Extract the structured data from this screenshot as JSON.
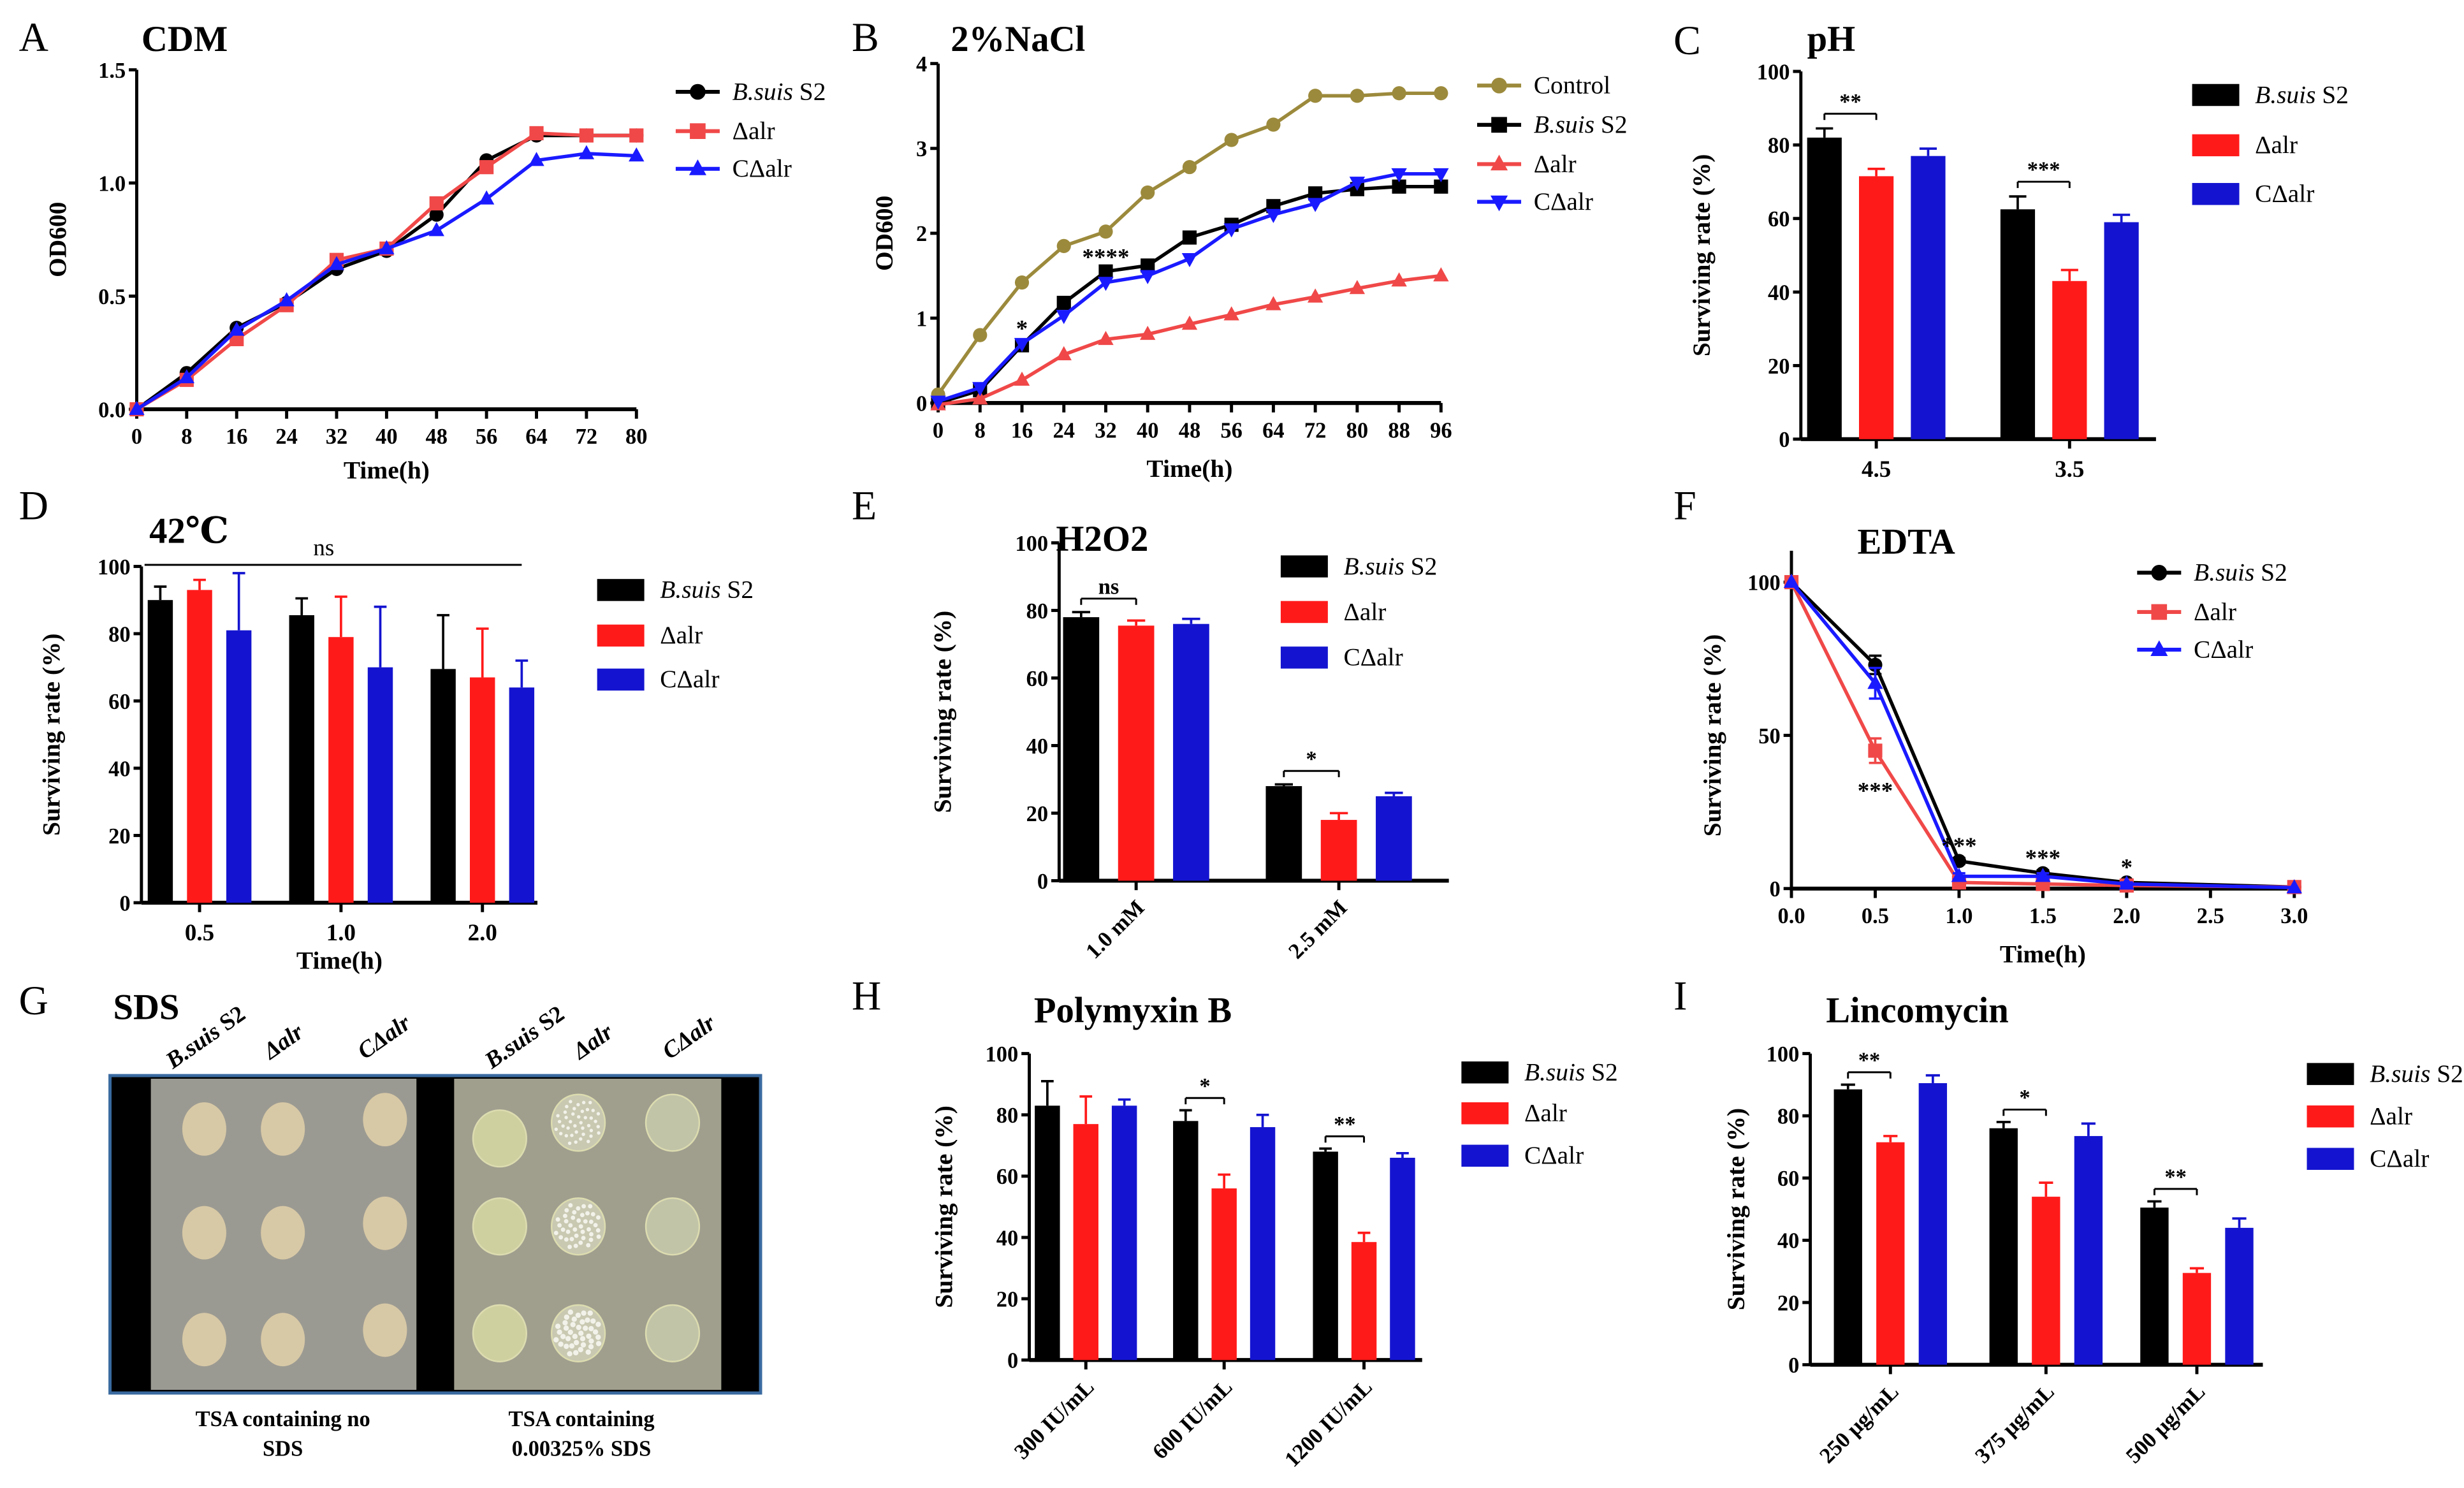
{
  "chart_data": [
    {
      "panel": "A",
      "type": "line",
      "title": "CDM",
      "xlabel": "Time(h)",
      "ylabel": "OD600",
      "xlim": [
        0,
        80
      ],
      "ylim": [
        0,
        1.5
      ],
      "xticks": [
        0,
        8,
        16,
        24,
        32,
        40,
        48,
        56,
        64,
        72,
        80
      ],
      "yticks": [
        0,
        0.5,
        1.0,
        1.5
      ],
      "ytick_labels": [
        "0.0",
        "0.5",
        "1.0",
        "1.5"
      ],
      "x": [
        0,
        8,
        16,
        24,
        32,
        40,
        48,
        56,
        64,
        72,
        80
      ],
      "series": [
        {
          "name": "B.suis S2",
          "color": "#000000",
          "marker": "circle",
          "values": [
            0,
            0.16,
            0.36,
            0.47,
            0.62,
            0.7,
            0.86,
            1.1,
            1.21,
            1.21,
            1.21
          ]
        },
        {
          "name": "Δalr",
          "color": "#f04848",
          "marker": "square",
          "values": [
            0,
            0.13,
            0.31,
            0.46,
            0.66,
            0.71,
            0.91,
            1.07,
            1.22,
            1.21,
            1.21
          ]
        },
        {
          "name": "CΔalr",
          "color": "#1a1aff",
          "marker": "triangle-up",
          "values": [
            0,
            0.14,
            0.35,
            0.48,
            0.64,
            0.71,
            0.79,
            0.93,
            1.1,
            1.13,
            1.12
          ]
        }
      ],
      "annotations": [],
      "legend_position": "right"
    },
    {
      "panel": "B",
      "type": "line",
      "title": "2%NaCl",
      "xlabel": "Time(h)",
      "ylabel": "OD600",
      "xlim": [
        0,
        96
      ],
      "ylim": [
        0,
        4
      ],
      "xticks": [
        0,
        8,
        16,
        24,
        32,
        40,
        48,
        56,
        64,
        72,
        80,
        88,
        96
      ],
      "yticks": [
        0,
        1,
        2,
        3,
        4
      ],
      "ytick_labels": [
        "0",
        "1",
        "2",
        "3",
        "4"
      ],
      "x": [
        0,
        8,
        16,
        24,
        32,
        40,
        48,
        56,
        64,
        72,
        80,
        88,
        96
      ],
      "series": [
        {
          "name": "Control",
          "color": "#9c8a3c",
          "marker": "circle",
          "values": [
            0.1,
            0.8,
            1.42,
            1.85,
            2.02,
            2.48,
            2.78,
            3.1,
            3.28,
            3.62,
            3.62,
            3.65,
            3.65
          ]
        },
        {
          "name": "B.suis S2",
          "color": "#000000",
          "marker": "square",
          "values": [
            0,
            0.15,
            0.68,
            1.18,
            1.55,
            1.62,
            1.95,
            2.1,
            2.32,
            2.47,
            2.52,
            2.55,
            2.55
          ]
        },
        {
          "name": "Δalr",
          "color": "#f04848",
          "marker": "triangle-up",
          "values": [
            -0.02,
            0.05,
            0.27,
            0.57,
            0.75,
            0.81,
            0.93,
            1.04,
            1.16,
            1.25,
            1.35,
            1.44,
            1.5
          ]
        },
        {
          "name": "CΔalr",
          "color": "#1a1aff",
          "marker": "triangle-down",
          "values": [
            0.02,
            0.18,
            0.7,
            1.03,
            1.42,
            1.5,
            1.7,
            2.05,
            2.22,
            2.35,
            2.6,
            2.7,
            2.7
          ]
        }
      ],
      "annotations": [
        {
          "x": 16,
          "y": 0.88,
          "label": "*"
        },
        {
          "x": 32,
          "y": 1.72,
          "label": "****"
        }
      ],
      "legend_position": "right"
    },
    {
      "panel": "C",
      "type": "bar",
      "title": "pH",
      "xlabel": "",
      "ylabel": "Surviving rate (%)",
      "ylim": [
        0,
        100
      ],
      "yticks": [
        0,
        20,
        40,
        60,
        80,
        100
      ],
      "ytick_labels": [
        "0",
        "20",
        "40",
        "60",
        "80",
        "100"
      ],
      "categories": [
        "4.5",
        "3.5"
      ],
      "series": [
        {
          "name": "B.suis S2",
          "color": "#000000",
          "values": [
            82,
            62.5
          ],
          "errors": [
            2.5,
            3.5
          ]
        },
        {
          "name": "Δalr",
          "color": "#ff1a1a",
          "values": [
            71.5,
            43
          ],
          "errors": [
            2,
            3
          ]
        },
        {
          "name": "CΔalr",
          "color": "#1414d0",
          "values": [
            77,
            59
          ],
          "errors": [
            2,
            2
          ]
        }
      ],
      "annotations": [
        {
          "group": 0,
          "label": "**"
        },
        {
          "group": 1,
          "label": "***"
        }
      ],
      "legend_position": "right"
    },
    {
      "panel": "D",
      "type": "bar",
      "title": "42℃",
      "xlabel": "Time(h)",
      "ylabel": "Surviving rate (%)",
      "ylim": [
        0,
        100
      ],
      "yticks": [
        0,
        20,
        40,
        60,
        80,
        100
      ],
      "ytick_labels": [
        "0",
        "20",
        "40",
        "60",
        "80",
        "100"
      ],
      "categories": [
        "0.5",
        "1.0",
        "2.0"
      ],
      "series": [
        {
          "name": "B.suis S2",
          "color": "#000000",
          "values": [
            90,
            85.5,
            69.5
          ],
          "errors": [
            4,
            5,
            16
          ]
        },
        {
          "name": "Δalr",
          "color": "#ff1a1a",
          "values": [
            93,
            79,
            67
          ],
          "errors": [
            3,
            12,
            14.5
          ]
        },
        {
          "name": "CΔalr",
          "color": "#1414d0",
          "values": [
            81,
            70,
            64
          ],
          "errors": [
            17,
            18,
            8
          ]
        }
      ],
      "annotations": [
        {
          "span": true,
          "y": 100,
          "label": "ns"
        }
      ],
      "legend_position": "right"
    },
    {
      "panel": "E",
      "type": "bar",
      "title": "H2O2",
      "xlabel": "",
      "ylabel": "Surviving rate (%)",
      "ylim": [
        0,
        100
      ],
      "yticks": [
        0,
        20,
        40,
        60,
        80,
        100
      ],
      "ytick_labels": [
        "0",
        "20",
        "40",
        "60",
        "80",
        "100"
      ],
      "categories": [
        "1.0 mM",
        "2.5 mM"
      ],
      "series": [
        {
          "name": "B.suis S2",
          "color": "#000000",
          "values": [
            78,
            28
          ],
          "errors": [
            1.5,
            0.5
          ]
        },
        {
          "name": "Δalr",
          "color": "#ff1a1a",
          "values": [
            75.5,
            18
          ],
          "errors": [
            1.5,
            2
          ]
        },
        {
          "name": "CΔalr",
          "color": "#1414d0",
          "values": [
            76,
            25
          ],
          "errors": [
            1.5,
            1
          ]
        }
      ],
      "annotations": [
        {
          "group": 0,
          "label": "ns"
        },
        {
          "group": 1,
          "label": "*"
        }
      ],
      "legend_position": "right"
    },
    {
      "panel": "F",
      "type": "line",
      "title": "EDTA",
      "xlabel": "Time(h)",
      "ylabel": "Surviving rate (%)",
      "xlim": [
        0,
        3
      ],
      "ylim": [
        0,
        100
      ],
      "xticks": [
        0,
        0.5,
        1,
        1.5,
        2,
        2.5,
        3
      ],
      "xtick_labels": [
        "0.0",
        "0.5",
        "1.0",
        "1.5",
        "2.0",
        "2.5",
        "3.0"
      ],
      "yticks": [
        0,
        50,
        100
      ],
      "ytick_labels": [
        "0",
        "50",
        "100"
      ],
      "x": [
        0,
        0.5,
        1,
        1.5,
        2,
        3
      ],
      "series": [
        {
          "name": "B.suis S2",
          "color": "#000000",
          "marker": "circle",
          "values": [
            100,
            73,
            9,
            5,
            2,
            0.5
          ],
          "errors": [
            0,
            3,
            1,
            1,
            0.5,
            0
          ]
        },
        {
          "name": "Δalr",
          "color": "#f04848",
          "marker": "square",
          "values": [
            100,
            45,
            2,
            1.5,
            1,
            0.5
          ],
          "errors": [
            0,
            4,
            0.5,
            0.5,
            0.5,
            0
          ]
        },
        {
          "name": "CΔalr",
          "color": "#1a1aff",
          "marker": "triangle-up",
          "values": [
            100,
            67,
            4,
            4,
            1.5,
            0.3
          ],
          "errors": [
            0,
            5,
            1,
            1,
            0.5,
            0
          ]
        }
      ],
      "annotations": [
        {
          "x": 0.5,
          "y": 32,
          "label": "***"
        },
        {
          "x": 1,
          "y": 14,
          "label": "***"
        },
        {
          "x": 1.5,
          "y": 10,
          "label": "***"
        },
        {
          "x": 2,
          "y": 7,
          "label": "*"
        }
      ],
      "legend_position": "right"
    },
    {
      "panel": "H",
      "type": "bar",
      "title": "Polymyxin B",
      "xlabel": "",
      "ylabel": "Surviving rate (%)",
      "ylim": [
        0,
        100
      ],
      "yticks": [
        0,
        20,
        40,
        60,
        80,
        100
      ],
      "ytick_labels": [
        "0",
        "20",
        "40",
        "60",
        "80",
        "100"
      ],
      "categories": [
        "300 IU/mL",
        "600 IU/mL",
        "1200 IU/mL"
      ],
      "series": [
        {
          "name": "B.suis S2",
          "color": "#000000",
          "values": [
            83,
            78,
            68
          ],
          "errors": [
            8,
            3.5,
            1
          ]
        },
        {
          "name": "Δalr",
          "color": "#ff1a1a",
          "values": [
            77,
            56,
            38.5
          ],
          "errors": [
            9,
            4.5,
            3
          ]
        },
        {
          "name": "CΔalr",
          "color": "#1414d0",
          "values": [
            83,
            76,
            66
          ],
          "errors": [
            2,
            4,
            1.5
          ]
        }
      ],
      "annotations": [
        {
          "group": 1,
          "label": "*"
        },
        {
          "group": 2,
          "label": "**"
        }
      ],
      "legend_position": "right"
    },
    {
      "panel": "I",
      "type": "bar",
      "title": "Lincomycin",
      "xlabel": "",
      "ylabel": "Surviving rate (%)",
      "ylim": [
        0,
        100
      ],
      "yticks": [
        0,
        20,
        40,
        60,
        80,
        100
      ],
      "ytick_labels": [
        "0",
        "20",
        "40",
        "60",
        "80",
        "100"
      ],
      "categories": [
        "250 μg/mL",
        "375 μg/mL",
        "500 μg/mL"
      ],
      "series": [
        {
          "name": "B.suis S2",
          "color": "#000000",
          "values": [
            88.5,
            76,
            50.5
          ],
          "errors": [
            1.5,
            2,
            2
          ]
        },
        {
          "name": "Δalr",
          "color": "#ff1a1a",
          "values": [
            71.5,
            54,
            29.5
          ],
          "errors": [
            2,
            4.5,
            1.5
          ]
        },
        {
          "name": "CΔalr",
          "color": "#1414d0",
          "values": [
            90.5,
            73.5,
            44
          ],
          "errors": [
            2.5,
            4,
            3
          ]
        }
      ],
      "annotations": [
        {
          "group": 0,
          "label": "**"
        },
        {
          "group": 1,
          "label": "*"
        },
        {
          "group": 2,
          "label": "**"
        }
      ],
      "legend_position": "right"
    }
  ],
  "panel_g": {
    "panel": "G",
    "title": "SDS",
    "column_labels": [
      "B.suis S2",
      "Δalr",
      "CΔalr",
      "B.suis S2",
      "Δalr",
      "CΔalr"
    ],
    "captions": [
      [
        "TSA containing no",
        "SDS"
      ],
      [
        "TSA containing",
        "0.00325% SDS"
      ]
    ],
    "frame_color": "#3a6aa0"
  }
}
